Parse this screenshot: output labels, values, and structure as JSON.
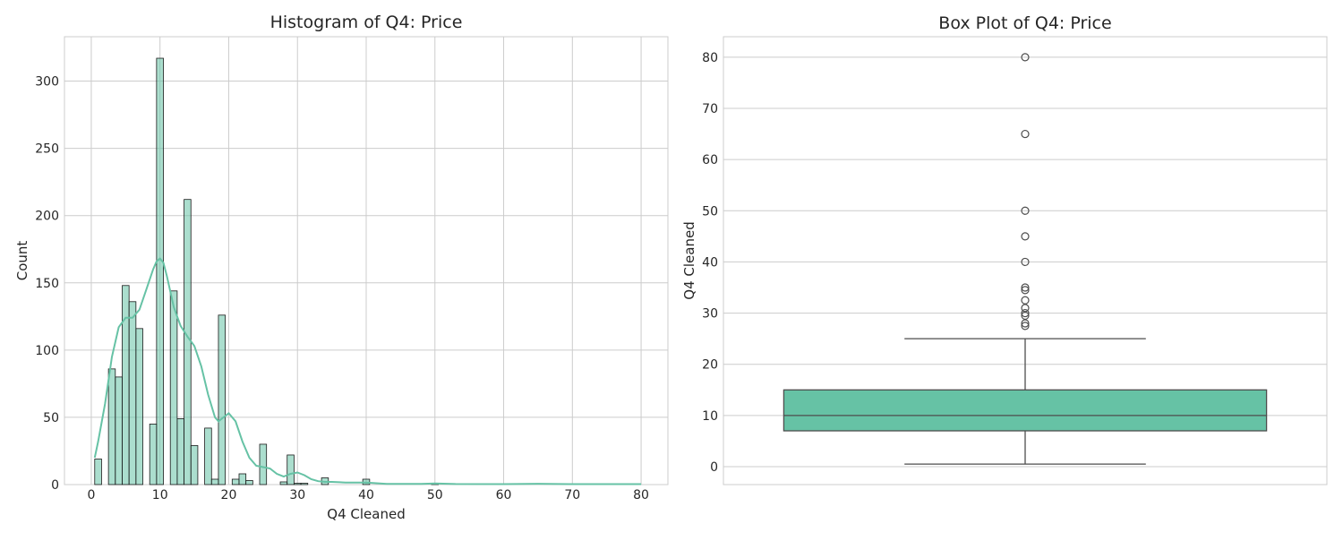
{
  "chart_data": [
    {
      "type": "histogram",
      "title": "Histogram of Q4: Price",
      "xlabel": "Q4 Cleaned",
      "ylabel": "Count",
      "xlim": [
        -3.9,
        83.9
      ],
      "ylim": [
        0,
        333
      ],
      "xticks": [
        0,
        10,
        20,
        30,
        40,
        50,
        60,
        70,
        80
      ],
      "yticks": [
        0,
        50,
        100,
        150,
        200,
        250,
        300
      ],
      "grid": true,
      "bar_color": "#66c2a5",
      "kde_color": "#66c2a5",
      "bins": [
        {
          "x0": 0.5,
          "x1": 1.5,
          "count": 19
        },
        {
          "x0": 1.5,
          "x1": 2.5,
          "count": 0
        },
        {
          "x0": 2.5,
          "x1": 3.5,
          "count": 86
        },
        {
          "x0": 3.5,
          "x1": 4.5,
          "count": 80
        },
        {
          "x0": 4.5,
          "x1": 5.5,
          "count": 148
        },
        {
          "x0": 5.5,
          "x1": 6.5,
          "count": 136
        },
        {
          "x0": 6.5,
          "x1": 7.5,
          "count": 116
        },
        {
          "x0": 7.5,
          "x1": 8.5,
          "count": 0
        },
        {
          "x0": 8.5,
          "x1": 9.5,
          "count": 45
        },
        {
          "x0": 9.5,
          "x1": 10.5,
          "count": 317
        },
        {
          "x0": 10.5,
          "x1": 11.5,
          "count": 0
        },
        {
          "x0": 11.5,
          "x1": 12.5,
          "count": 144
        },
        {
          "x0": 12.5,
          "x1": 13.5,
          "count": 49
        },
        {
          "x0": 13.5,
          "x1": 14.5,
          "count": 212
        },
        {
          "x0": 14.5,
          "x1": 15.5,
          "count": 29
        },
        {
          "x0": 15.5,
          "x1": 16.5,
          "count": 0
        },
        {
          "x0": 16.5,
          "x1": 17.5,
          "count": 42
        },
        {
          "x0": 17.5,
          "x1": 18.5,
          "count": 4
        },
        {
          "x0": 18.5,
          "x1": 19.5,
          "count": 126
        },
        {
          "x0": 19.5,
          "x1": 20.5,
          "count": 0
        },
        {
          "x0": 20.5,
          "x1": 21.5,
          "count": 4
        },
        {
          "x0": 21.5,
          "x1": 22.5,
          "count": 8
        },
        {
          "x0": 22.5,
          "x1": 23.5,
          "count": 3
        },
        {
          "x0": 23.5,
          "x1": 24.5,
          "count": 0
        },
        {
          "x0": 24.5,
          "x1": 25.5,
          "count": 30
        },
        {
          "x0": 25.5,
          "x1": 26.5,
          "count": 0
        },
        {
          "x0": 26.5,
          "x1": 27.5,
          "count": 0
        },
        {
          "x0": 27.5,
          "x1": 28.5,
          "count": 2
        },
        {
          "x0": 28.5,
          "x1": 29.5,
          "count": 22
        },
        {
          "x0": 29.5,
          "x1": 30.5,
          "count": 1
        },
        {
          "x0": 30.5,
          "x1": 31.5,
          "count": 1
        },
        {
          "x0": 33.5,
          "x1": 34.5,
          "count": 5
        },
        {
          "x0": 39.5,
          "x1": 40.5,
          "count": 4
        },
        {
          "x0": 49.5,
          "x1": 50.5,
          "count": 1
        }
      ],
      "kde": [
        [
          0.5,
          20
        ],
        [
          1,
          32
        ],
        [
          2,
          60
        ],
        [
          3,
          95
        ],
        [
          4,
          117
        ],
        [
          5,
          124
        ],
        [
          6,
          124
        ],
        [
          7,
          130
        ],
        [
          8,
          145
        ],
        [
          9,
          160
        ],
        [
          9.5,
          166
        ],
        [
          10,
          168
        ],
        [
          10.5,
          165
        ],
        [
          11,
          155
        ],
        [
          12,
          132
        ],
        [
          13,
          118
        ],
        [
          14,
          110
        ],
        [
          15,
          103
        ],
        [
          16,
          88
        ],
        [
          17,
          67
        ],
        [
          18,
          50
        ],
        [
          18.5,
          47
        ],
        [
          19,
          49
        ],
        [
          20,
          53
        ],
        [
          21,
          47
        ],
        [
          22,
          32
        ],
        [
          23,
          20
        ],
        [
          24,
          14
        ],
        [
          25,
          13
        ],
        [
          26,
          12
        ],
        [
          27,
          8
        ],
        [
          28,
          6
        ],
        [
          29,
          8
        ],
        [
          30,
          9
        ],
        [
          31,
          7
        ],
        [
          32,
          4
        ],
        [
          33,
          2.5
        ],
        [
          34,
          2
        ],
        [
          35,
          2
        ],
        [
          37,
          1.5
        ],
        [
          40,
          1.5
        ],
        [
          43,
          0.5
        ],
        [
          48,
          0.5
        ],
        [
          50,
          0.8
        ],
        [
          53,
          0.4
        ],
        [
          60,
          0.3
        ],
        [
          65,
          0.6
        ],
        [
          70,
          0.3
        ],
        [
          75,
          0.3
        ],
        [
          80,
          0.3
        ]
      ]
    },
    {
      "type": "box",
      "title": "Box Plot of Q4: Price",
      "xlabel": "",
      "ylabel": "Q4 Cleaned",
      "ylim": [
        -3.5,
        84
      ],
      "yticks": [
        0,
        10,
        20,
        30,
        40,
        50,
        60,
        70,
        80
      ],
      "grid": true,
      "box_color": "#66c2a5",
      "stats": {
        "whisker_low": 0.5,
        "q1": 7,
        "median": 10,
        "q3": 15,
        "whisker_high": 25
      },
      "outliers": [
        27.5,
        28,
        29.5,
        30,
        31,
        32.5,
        34.5,
        35,
        40,
        45,
        50,
        65,
        80
      ]
    }
  ]
}
